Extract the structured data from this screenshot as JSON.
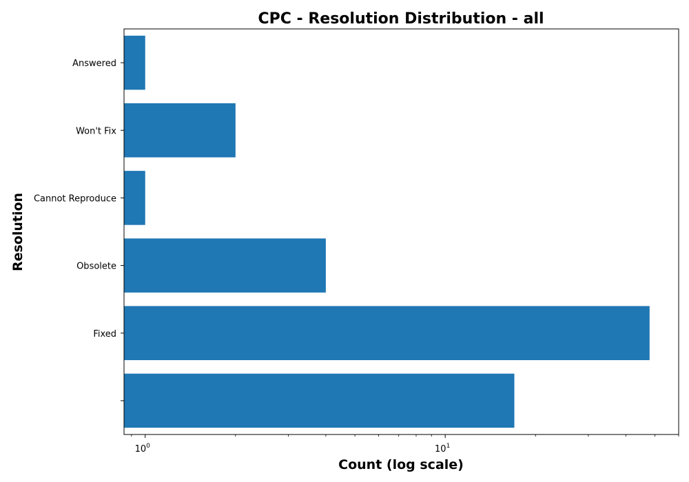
{
  "chart_data": {
    "type": "bar",
    "orientation": "horizontal",
    "title": "CPC - Resolution Distribution - all",
    "xlabel": "Count (log scale)",
    "ylabel": "Resolution",
    "x_scale": "log",
    "xlim": [
      0.85,
      60
    ],
    "x_ticks": [
      {
        "value": 1,
        "base": "10",
        "exp": "0"
      },
      {
        "value": 10,
        "base": "10",
        "exp": "1"
      }
    ],
    "categories": [
      "Answered",
      "Won't Fix",
      "Cannot Reproduce",
      "Obsolete",
      "Fixed",
      ""
    ],
    "values": [
      1,
      2,
      1,
      4,
      48,
      17
    ],
    "bar_color": "#1f77b4",
    "grid": false,
    "legend": "none"
  }
}
